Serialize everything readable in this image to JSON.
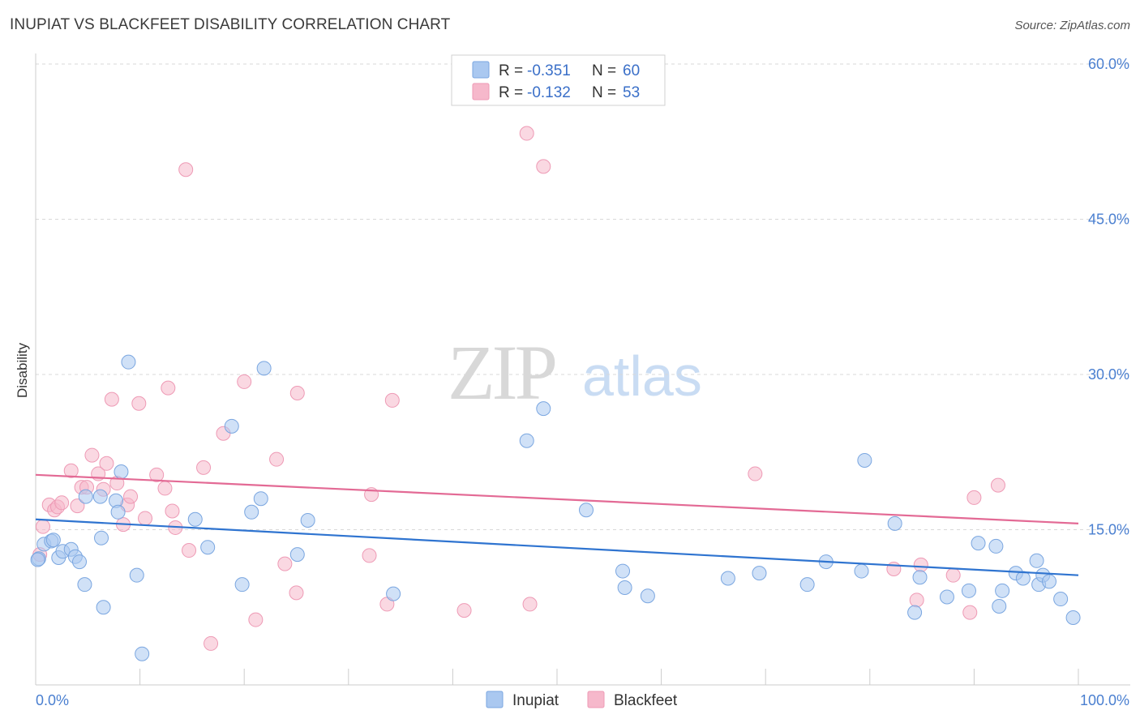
{
  "header": {
    "title": "INUPIAT VS BLACKFEET DISABILITY CORRELATION CHART",
    "source": "Source: ZipAtlas.com"
  },
  "watermark": {
    "zip": "ZIP",
    "atlas": "atlas"
  },
  "legend": {
    "rows": [
      {
        "r_label": "R =",
        "r_value": "-0.351",
        "n_label": "N =",
        "n_value": "60",
        "color": "#aac8f0"
      },
      {
        "r_label": "R =",
        "r_value": "-0.132",
        "n_label": "N =",
        "n_value": "53",
        "color": "#f6b8cb"
      }
    ]
  },
  "colors": {
    "inupiat_fill": "#aac8f0",
    "inupiat_stroke": "#7aa6e0",
    "inupiat_line": "#2f74d0",
    "blackfeet_fill": "#f6b8cb",
    "blackfeet_stroke": "#ee9ab5",
    "blackfeet_line": "#e36a95",
    "grid": "#d8d8d8",
    "axis": "#cccccc"
  },
  "chart_data": {
    "type": "scatter",
    "title": "INUPIAT VS BLACKFEET DISABILITY CORRELATION CHART",
    "xlabel": "",
    "ylabel": "Disability",
    "xlim": [
      0,
      100
    ],
    "ylim": [
      0,
      60
    ],
    "x_tick_labels": [
      "0.0%",
      "100.0%"
    ],
    "y_ticks": [
      15,
      30,
      45,
      60
    ],
    "y_tick_labels": [
      "15.0%",
      "30.0%",
      "45.0%",
      "60.0%"
    ],
    "grid": true,
    "legend_position": "bottom",
    "series": [
      {
        "name": "Inupiat",
        "r": -0.351,
        "n": 60,
        "trend": {
          "x": [
            0,
            100
          ],
          "y": [
            16.0,
            10.6
          ]
        },
        "points": [
          [
            0.3,
            12.2
          ],
          [
            0.8,
            13.6
          ],
          [
            1.5,
            13.9
          ],
          [
            1.7,
            14.0
          ],
          [
            2.2,
            12.3
          ],
          [
            2.6,
            12.9
          ],
          [
            3.4,
            13.1
          ],
          [
            3.8,
            12.4
          ],
          [
            4.2,
            11.9
          ],
          [
            4.7,
            9.7
          ],
          [
            4.8,
            18.2
          ],
          [
            6.2,
            18.2
          ],
          [
            6.3,
            14.2
          ],
          [
            6.5,
            7.5
          ],
          [
            7.7,
            17.8
          ],
          [
            7.9,
            16.7
          ],
          [
            8.2,
            20.6
          ],
          [
            8.9,
            31.2
          ],
          [
            9.7,
            10.6
          ],
          [
            10.2,
            3.0
          ],
          [
            15.3,
            16.0
          ],
          [
            16.5,
            13.3
          ],
          [
            18.8,
            25.0
          ],
          [
            19.8,
            9.7
          ],
          [
            20.7,
            16.7
          ],
          [
            21.6,
            18.0
          ],
          [
            21.9,
            30.6
          ],
          [
            25.1,
            12.6
          ],
          [
            26.1,
            15.9
          ],
          [
            34.3,
            8.8
          ],
          [
            47.1,
            23.6
          ],
          [
            48.7,
            26.7
          ],
          [
            52.8,
            16.9
          ],
          [
            56.3,
            11.0
          ],
          [
            56.5,
            9.4
          ],
          [
            58.7,
            8.6
          ],
          [
            66.4,
            10.3
          ],
          [
            69.4,
            10.8
          ],
          [
            74.0,
            9.7
          ],
          [
            75.8,
            11.9
          ],
          [
            79.2,
            11.0
          ],
          [
            79.5,
            21.7
          ],
          [
            82.4,
            15.6
          ],
          [
            84.3,
            7.0
          ],
          [
            84.8,
            10.4
          ],
          [
            87.4,
            8.5
          ],
          [
            89.5,
            9.1
          ],
          [
            90.4,
            13.7
          ],
          [
            92.1,
            13.4
          ],
          [
            92.4,
            7.6
          ],
          [
            92.7,
            9.1
          ],
          [
            94.0,
            10.8
          ],
          [
            94.7,
            10.3
          ],
          [
            96.0,
            12.0
          ],
          [
            96.2,
            9.7
          ],
          [
            96.6,
            10.6
          ],
          [
            97.2,
            10.0
          ],
          [
            98.3,
            8.3
          ],
          [
            99.5,
            6.5
          ],
          [
            0.2,
            12.1
          ]
        ]
      },
      {
        "name": "Blackfeet",
        "r": -0.132,
        "n": 53,
        "trend": {
          "x": [
            0,
            100
          ],
          "y": [
            20.3,
            15.6
          ]
        },
        "points": [
          [
            0.4,
            12.6
          ],
          [
            0.7,
            15.3
          ],
          [
            1.3,
            17.4
          ],
          [
            1.8,
            16.9
          ],
          [
            2.1,
            17.2
          ],
          [
            2.5,
            17.6
          ],
          [
            3.4,
            20.7
          ],
          [
            4.0,
            17.3
          ],
          [
            4.4,
            19.1
          ],
          [
            4.9,
            19.1
          ],
          [
            5.4,
            22.2
          ],
          [
            6.0,
            20.4
          ],
          [
            6.5,
            18.9
          ],
          [
            6.8,
            21.4
          ],
          [
            7.3,
            27.6
          ],
          [
            7.8,
            19.5
          ],
          [
            8.4,
            15.5
          ],
          [
            8.8,
            17.4
          ],
          [
            9.1,
            18.2
          ],
          [
            9.9,
            27.2
          ],
          [
            10.5,
            16.1
          ],
          [
            11.6,
            20.3
          ],
          [
            12.4,
            19.0
          ],
          [
            12.7,
            28.7
          ],
          [
            13.1,
            16.8
          ],
          [
            13.4,
            15.2
          ],
          [
            14.4,
            49.8
          ],
          [
            14.7,
            13.0
          ],
          [
            16.1,
            21.0
          ],
          [
            16.8,
            4.0
          ],
          [
            18.0,
            24.3
          ],
          [
            20.0,
            29.3
          ],
          [
            21.1,
            6.3
          ],
          [
            23.1,
            21.8
          ],
          [
            23.9,
            11.7
          ],
          [
            25.0,
            8.9
          ],
          [
            25.1,
            28.2
          ],
          [
            32.2,
            18.4
          ],
          [
            32.0,
            12.5
          ],
          [
            33.7,
            7.8
          ],
          [
            34.2,
            27.5
          ],
          [
            41.1,
            7.2
          ],
          [
            47.1,
            53.3
          ],
          [
            47.4,
            7.8
          ],
          [
            48.7,
            50.1
          ],
          [
            69.0,
            20.4
          ],
          [
            82.3,
            11.2
          ],
          [
            84.5,
            8.2
          ],
          [
            84.9,
            11.6
          ],
          [
            88.0,
            10.6
          ],
          [
            89.6,
            7.0
          ],
          [
            90.0,
            18.1
          ],
          [
            92.3,
            19.3
          ]
        ]
      }
    ]
  },
  "bottom_legend": {
    "items": [
      {
        "label": "Inupiat"
      },
      {
        "label": "Blackfeet"
      }
    ]
  }
}
